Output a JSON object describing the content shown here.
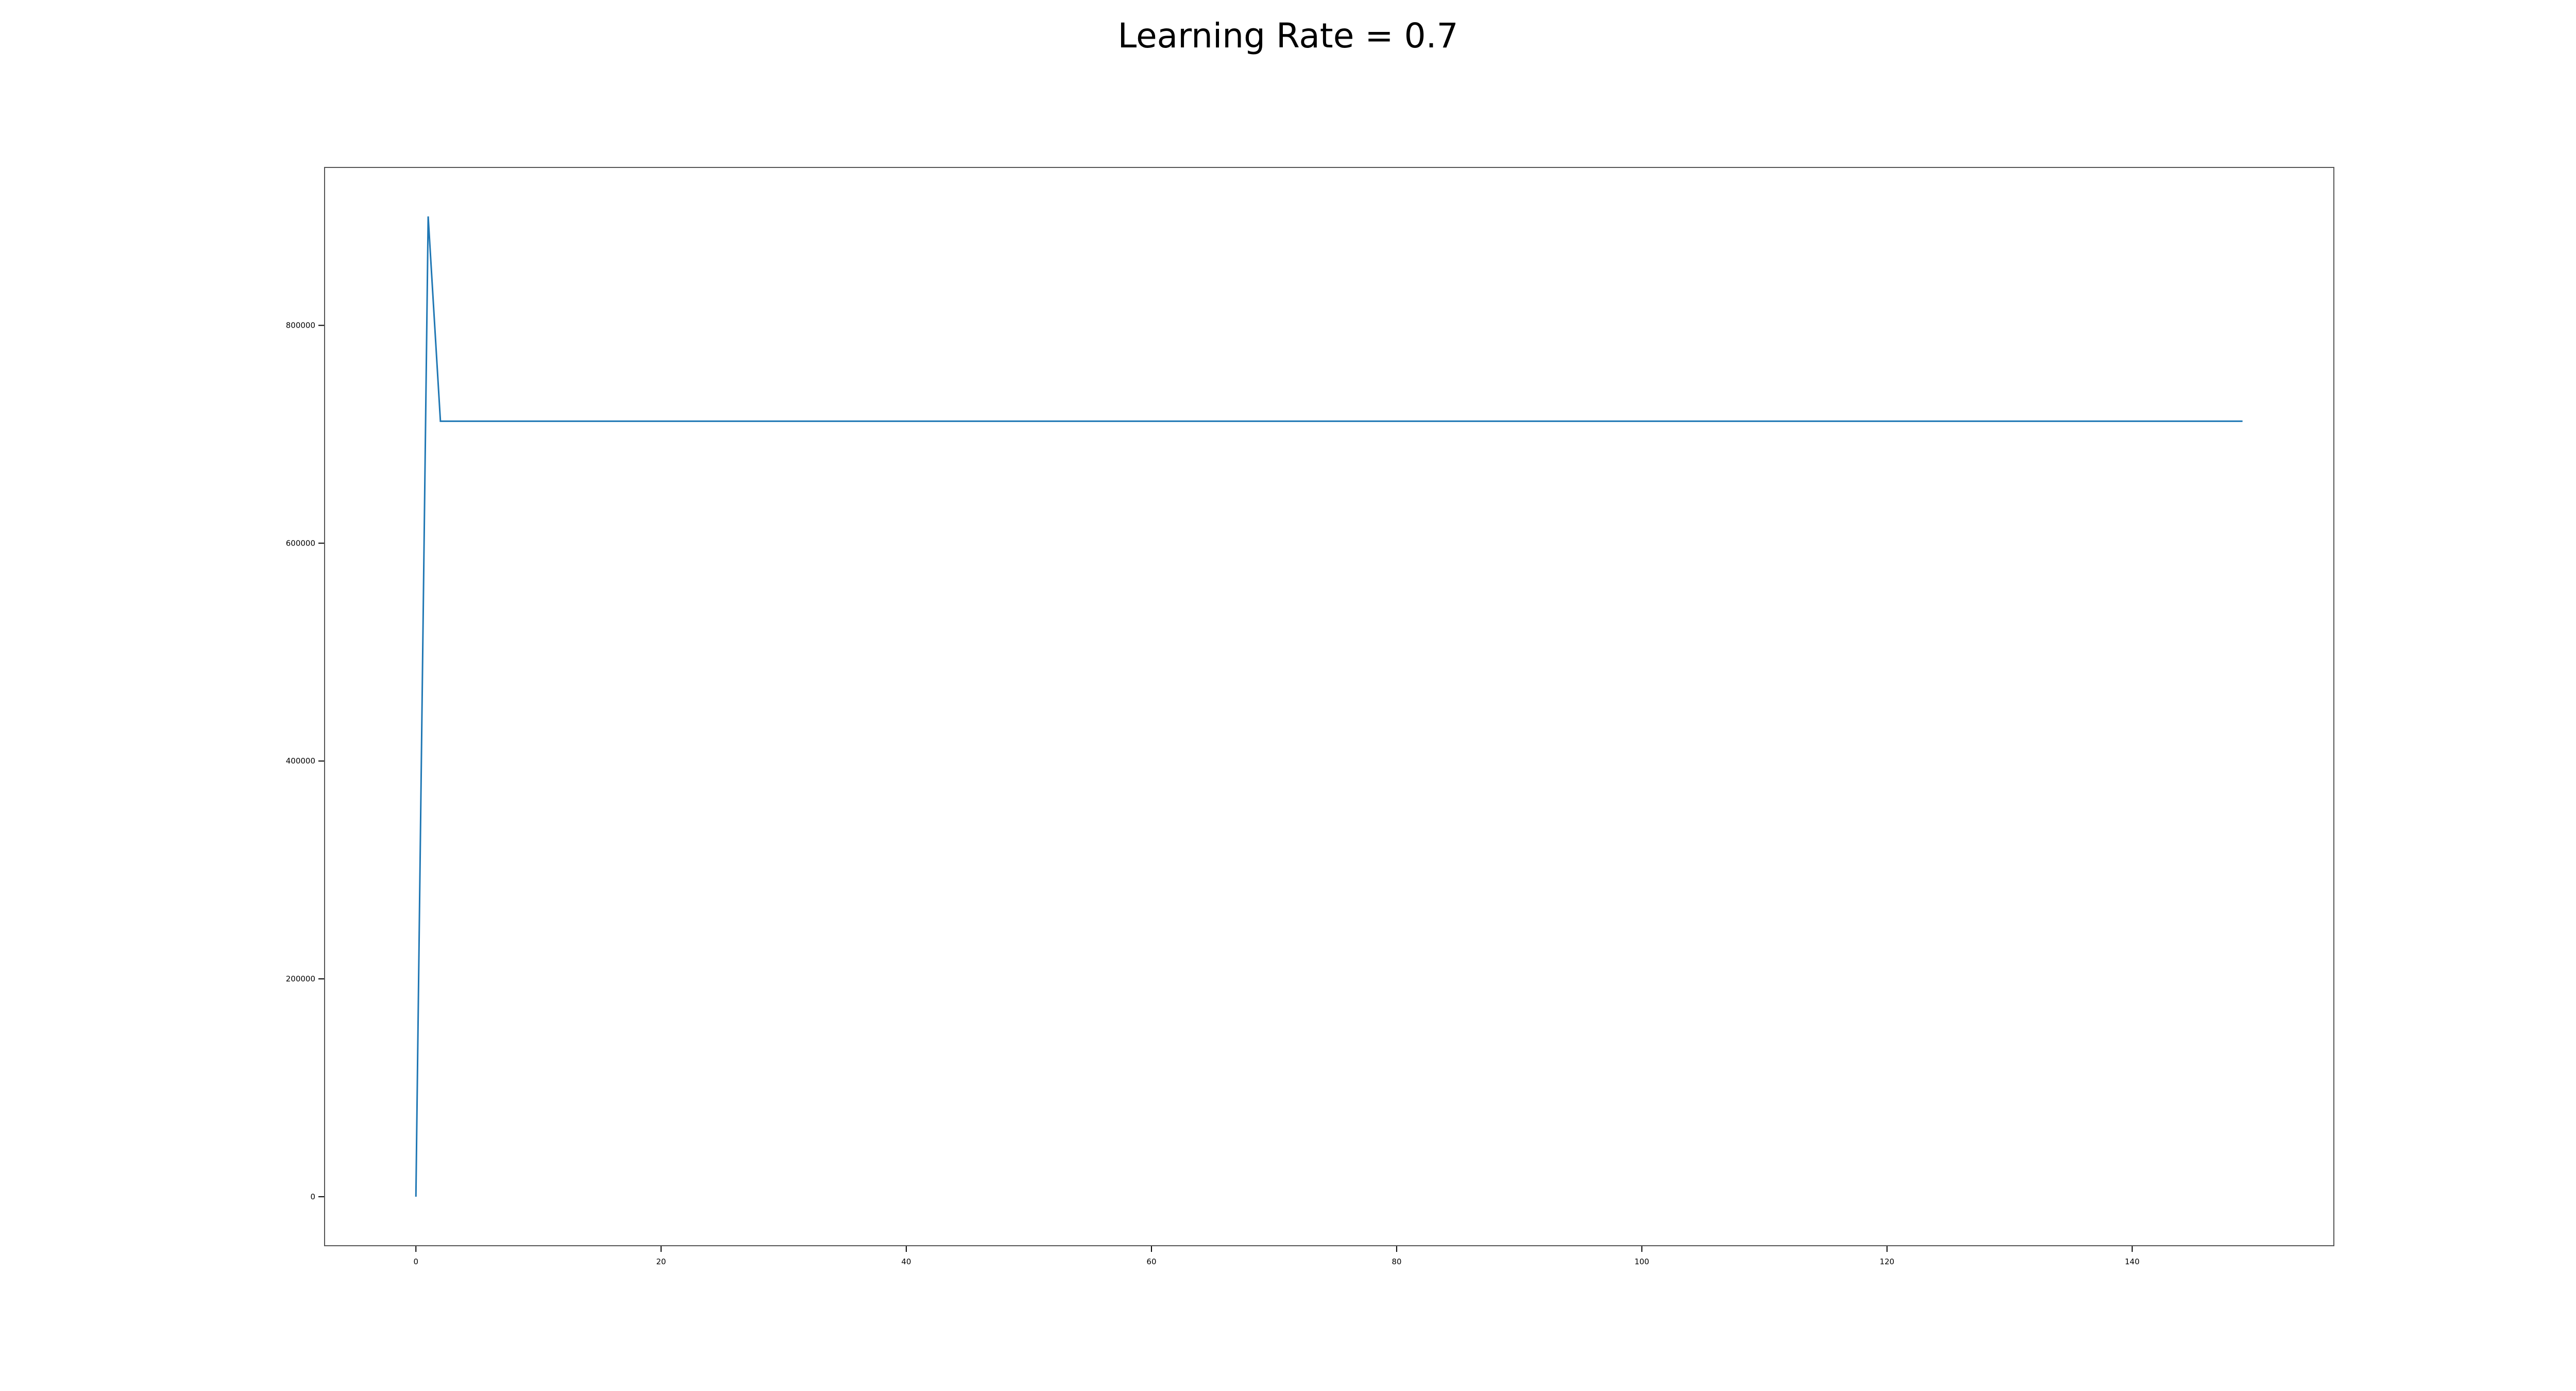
{
  "chart_data": {
    "type": "line",
    "title": "Learning Rate = 0.7",
    "xlabel": "",
    "ylabel": "",
    "xlim": [
      -7.45,
      156.45
    ],
    "ylim": [
      -45000,
      945000
    ],
    "x_ticks": [
      0,
      20,
      40,
      60,
      80,
      100,
      120,
      140
    ],
    "y_ticks": [
      0,
      200000,
      400000,
      600000,
      800000
    ],
    "grid": false,
    "legend": "none",
    "series": [
      {
        "color": "#1f77b4",
        "x": [
          0,
          1,
          2,
          149
        ],
        "y": [
          0,
          900000,
          712000,
          712000
        ]
      }
    ]
  }
}
